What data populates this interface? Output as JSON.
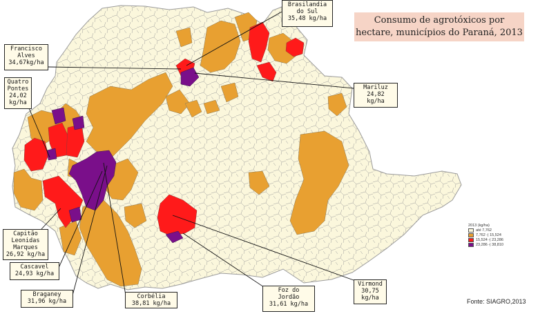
{
  "title": "Consumo de agrotóxicos por hectare, municípios do Paraná, 2013",
  "source": "Fonte: SIAGRO,2013",
  "colors": {
    "background": "#fbf7dc",
    "border": "#a8a8a8",
    "class1": "#fbf7dc",
    "class2": "#e8a031",
    "class3": "#ff1a1a",
    "class4": "#7a0f8a"
  },
  "legend": {
    "title": "2013 (kg/ha)",
    "items": [
      {
        "label": "até 7,762",
        "color": "#fbf7dc"
      },
      {
        "label": "7,762 -| 15,524",
        "color": "#e8a031"
      },
      {
        "label": "15,524 -| 23,286",
        "color": "#ff1a1a"
      },
      {
        "label": "23,286 -| 38,810",
        "color": "#7a0f8a"
      }
    ]
  },
  "callouts": [
    {
      "id": "brasilandia",
      "text": "Brasilandia\ndo Sul\n35,48 kg/ha"
    },
    {
      "id": "francisco",
      "text": "Francisco\nAlves\n34,67kg/ha"
    },
    {
      "id": "quatro",
      "text": "Quatro\nPontes\n24,02\nkg/ha"
    },
    {
      "id": "mariluz",
      "text": "Mariluz\n24,82\nkg/ha"
    },
    {
      "id": "capitao",
      "text": "Capitão\nLeonidas\nMarques\n26,92 kg/ha"
    },
    {
      "id": "cascavel",
      "text": "Cascavel\n24,93 kg/ha"
    },
    {
      "id": "braganey",
      "text": "Braganey\n31,96 kg/ha"
    },
    {
      "id": "corbelia",
      "text": "Corbélia\n38,81 kg/ha"
    },
    {
      "id": "foz",
      "text": "Foz do\nJordão\n31,61 kg/ha"
    },
    {
      "id": "virmond",
      "text": "Virmond\n30,75\nkg/ha"
    }
  ]
}
